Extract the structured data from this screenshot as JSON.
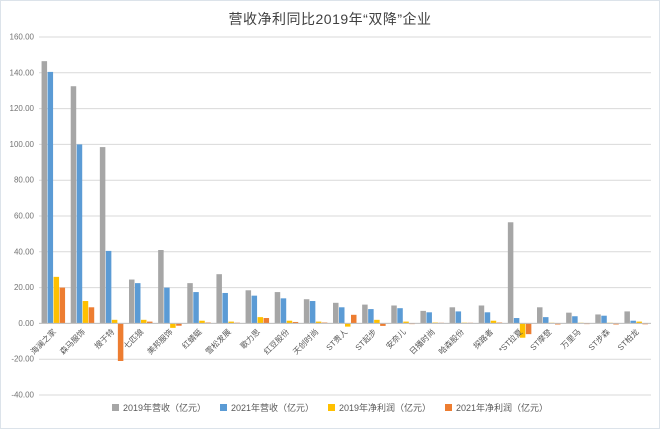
{
  "chart_data": {
    "type": "bar",
    "title": "营收净利同比2019年“双降”企业",
    "categories": [
      "海澜之家",
      "森马服饰",
      "搜于特",
      "七匹狼",
      "美邦服饰",
      "红蜻蜓",
      "雪松发展",
      "歌力思",
      "红豆股份",
      "天创时尚",
      "ST贵人",
      "ST起步",
      "安奈儿",
      "日播时尚",
      "哈森股份",
      "探路者",
      "*ST拉夏",
      "ST摩登",
      "万里马",
      "ST步森",
      "ST柏龙"
    ],
    "series": [
      {
        "name": "2019年营收（亿元）",
        "color": "#A6A6A6",
        "values": [
          146.5,
          132.5,
          98.5,
          24.5,
          41,
          22.5,
          27.5,
          18.5,
          17.5,
          13.5,
          11.5,
          10.5,
          10,
          7,
          9,
          10,
          56.5,
          9,
          6,
          5,
          6.7
        ]
      },
      {
        "name": "2021年营收（亿元）",
        "color": "#5B9BD5",
        "values": [
          140.5,
          100,
          40.5,
          22.5,
          20,
          17.5,
          17,
          15.5,
          14,
          12.5,
          9,
          8,
          8.5,
          6.2,
          6.7,
          6.2,
          3,
          3.5,
          4,
          4.3,
          1.5
        ]
      },
      {
        "name": "2019年净利润（亿元）",
        "color": "#FFC000",
        "values": [
          26,
          12.5,
          2,
          2,
          -2.5,
          1.5,
          1,
          3.5,
          1.5,
          1,
          -1.8,
          2,
          1,
          0.5,
          0.4,
          1.5,
          -8,
          0.3,
          0.3,
          0.3,
          1
        ]
      },
      {
        "name": "2021年净利润（亿元）",
        "color": "#ED7D31",
        "values": [
          20,
          9,
          -21,
          1,
          -1.3,
          0.5,
          0.4,
          3,
          0.8,
          0.5,
          4.8,
          -1.4,
          -0.4,
          0.3,
          0.3,
          0.5,
          -6,
          -0.6,
          -0.4,
          -0.6,
          -0.5
        ]
      }
    ],
    "y_axis": {
      "min": -40,
      "max": 160,
      "step": 20,
      "labels": [
        "160.00",
        "140.00",
        "120.00",
        "100.00",
        "80.00",
        "60.00",
        "40.00",
        "20.00",
        "0.00",
        "-20.00",
        "-40.00"
      ]
    },
    "grid": true,
    "legend_position": "bottom",
    "colors": {
      "gridline": "#D9D9D9",
      "zero_axis": "#BFBFBF",
      "tick_text": "#737373",
      "category_text": "#595959",
      "title_text": "#404040"
    }
  }
}
